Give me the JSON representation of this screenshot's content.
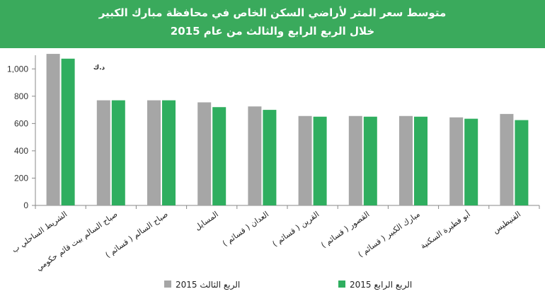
{
  "header": {
    "title_line1": "متوسط سعر المتر لأراضي السكن الخاص في محافظة مبارك الكبير",
    "title_line2": "خلال الربع الرابع والثالث من عام 2015"
  },
  "chart_data": {
    "type": "bar",
    "title": "متوسط سعر المتر لأراضي السكن الخاص في محافظة مبارك الكبير خلال الربع الرابع والثالث من عام 2015",
    "unit_label": "د.ك",
    "categories": [
      "الشريط الساحلي ب",
      "صباح السالم بيت قائم حكومي",
      "صباح السالم ( قسائم )",
      "المسايل",
      "العدان ( قسائم )",
      "القرين ( قسائم )",
      "القصور ( قسائم )",
      "مبارك الكبير ( قسائم )",
      "أبو فطيرة السكنية",
      "الفنيطيس"
    ],
    "series": [
      {
        "name": "الربع الثالث 2015",
        "color": "#a6a6a6",
        "values": [
          1110,
          770,
          770,
          755,
          725,
          655,
          655,
          655,
          645,
          670
        ]
      },
      {
        "name": "الربع الرابع 2015",
        "color": "#2fae5f",
        "values": [
          1075,
          770,
          770,
          720,
          700,
          650,
          650,
          650,
          635,
          625
        ]
      }
    ],
    "ylim": [
      0,
      1100
    ],
    "yticks": [
      0,
      200,
      400,
      600,
      800,
      1000
    ],
    "ytick_labels": [
      "0",
      "200",
      "400",
      "600",
      "800",
      "1,000"
    ],
    "legend_position": "bottom",
    "grid": false
  }
}
